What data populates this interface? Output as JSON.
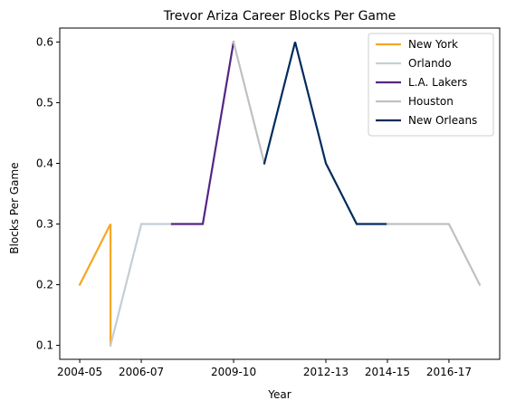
{
  "chart_data": {
    "type": "line",
    "title": "Trevor Ariza Career Blocks Per Game",
    "xlabel": "Year",
    "ylabel": "Blocks Per Game",
    "x_ticks": [
      "2004-05",
      "2006-07",
      "2009-10",
      "2012-13",
      "2014-15",
      "2016-17"
    ],
    "y_ticks": [
      "0.1",
      "0.2",
      "0.3",
      "0.4",
      "0.5",
      "0.6"
    ],
    "ylim": [
      0.077,
      0.623
    ],
    "grid": false,
    "legend_position": "top-right",
    "series": [
      {
        "name": "New York",
        "color": "#F5A623",
        "points": [
          {
            "x": "2004-05",
            "y": 0.2
          },
          {
            "x": "2005-06",
            "y": 0.3
          },
          {
            "x": "2005-06",
            "y": 0.1
          }
        ]
      },
      {
        "name": "Orlando",
        "color": "#C4CED4",
        "points": [
          {
            "x": "2005-06",
            "y": 0.1
          },
          {
            "x": "2006-07",
            "y": 0.3
          },
          {
            "x": "2007-08",
            "y": 0.3
          }
        ]
      },
      {
        "name": "L.A. Lakers",
        "color": "#552583",
        "points": [
          {
            "x": "2007-08",
            "y": 0.3
          },
          {
            "x": "2008-09",
            "y": 0.3
          },
          {
            "x": "2009-10",
            "y": 0.6
          }
        ]
      },
      {
        "name": "Houston",
        "color": "#C0C0C0",
        "points": [
          {
            "x": "2009-10",
            "y": 0.6
          },
          {
            "x": "2010-11",
            "y": 0.4
          }
        ]
      },
      {
        "name": "New Orleans",
        "color": "#002B5C",
        "points": [
          {
            "x": "2010-11",
            "y": 0.4
          },
          {
            "x": "2011-12",
            "y": 0.6
          },
          {
            "x": "2012-13",
            "y": 0.4
          },
          {
            "x": "2013-14",
            "y": 0.3
          },
          {
            "x": "2014-15",
            "y": 0.3
          }
        ]
      },
      {
        "name": "Houston",
        "color": "#C0C0C0",
        "legend": false,
        "points": [
          {
            "x": "2014-15",
            "y": 0.3
          },
          {
            "x": "2015-16",
            "y": 0.3
          },
          {
            "x": "2016-17",
            "y": 0.3
          },
          {
            "x": "2017-18",
            "y": 0.2
          }
        ]
      }
    ]
  }
}
